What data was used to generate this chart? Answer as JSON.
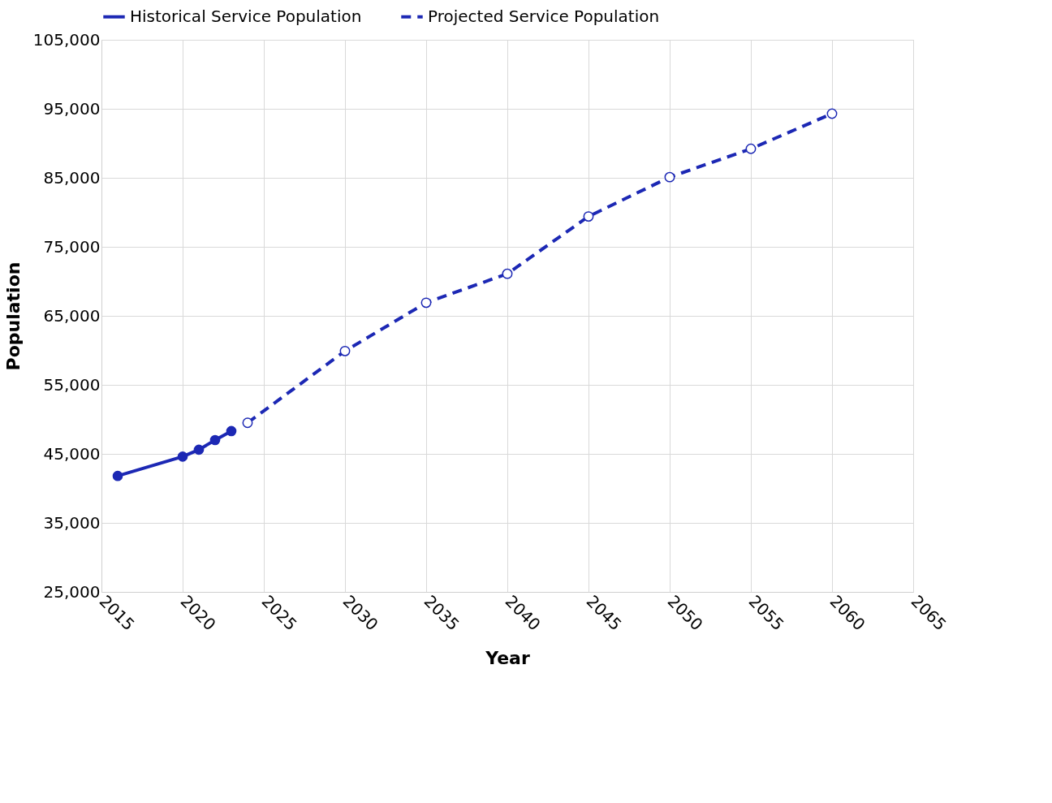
{
  "chart_data": {
    "type": "line",
    "xlabel": "Year",
    "ylabel": "Population",
    "xlim": [
      2015,
      2065
    ],
    "xticks": [
      2015,
      2020,
      2025,
      2030,
      2035,
      2040,
      2045,
      2050,
      2055,
      2060,
      2065
    ],
    "ylim": [
      25000,
      105000
    ],
    "yticks": [
      {
        "value": 25000,
        "label": "25,000"
      },
      {
        "value": 35000,
        "label": "35,000"
      },
      {
        "value": 45000,
        "label": "45,000"
      },
      {
        "value": 55000,
        "label": "55,000"
      },
      {
        "value": 65000,
        "label": "65,000"
      },
      {
        "value": 75000,
        "label": "75,000"
      },
      {
        "value": 85000,
        "label": "85,000"
      },
      {
        "value": 95000,
        "label": "95,000"
      },
      {
        "value": 105000,
        "label": "105,000"
      }
    ],
    "grid": true,
    "legend": "top",
    "marker": "circle",
    "series": [
      {
        "name": "Historical Service Population",
        "color": "#1c28b4",
        "line_style": "solid",
        "x": [
          2016,
          2020,
          2021,
          2022,
          2023
        ],
        "values": [
          41800,
          44600,
          45600,
          47000,
          48300
        ]
      },
      {
        "name": "Projected Service Population",
        "color": "#1c28b4",
        "line_style": "dashed",
        "x": [
          2024,
          2030,
          2035,
          2040,
          2045,
          2050,
          2055,
          2060
        ],
        "values": [
          49500,
          59900,
          66900,
          71100,
          79400,
          85100,
          89200,
          94300
        ]
      }
    ]
  }
}
